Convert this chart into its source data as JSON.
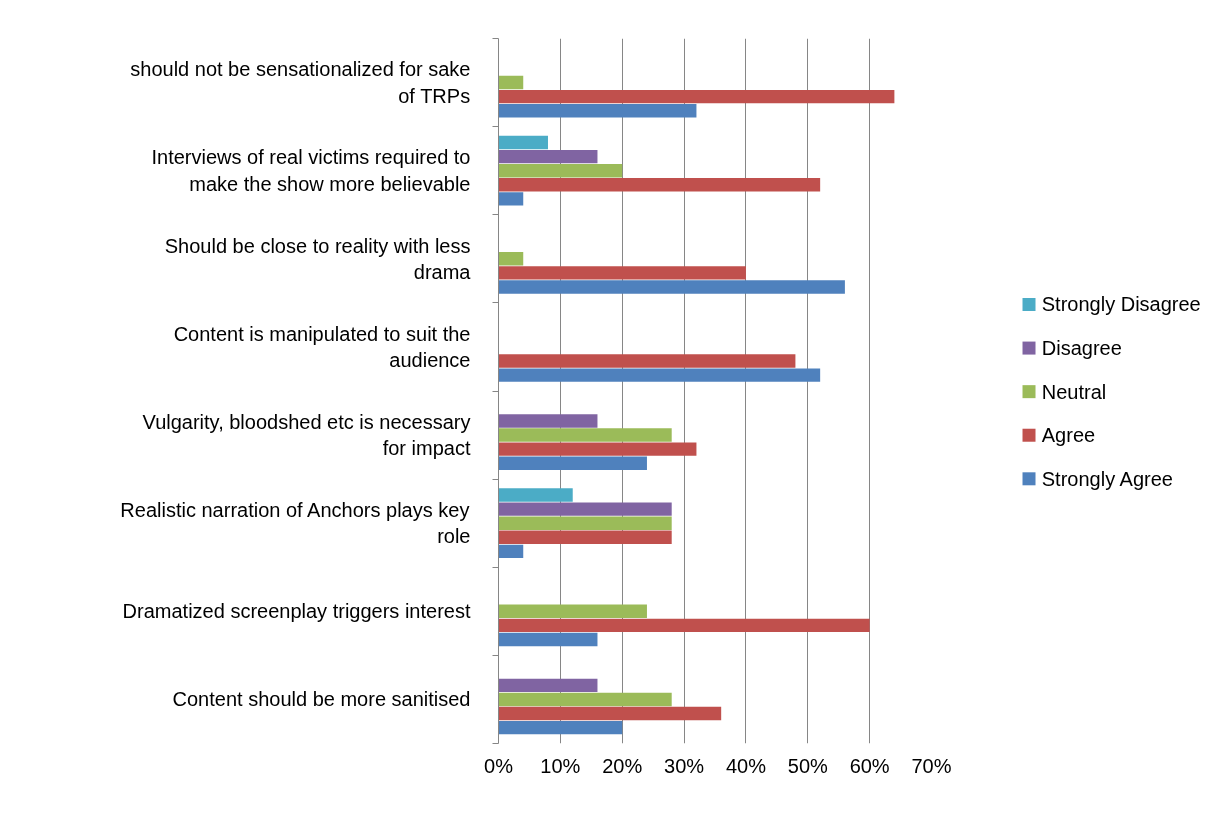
{
  "chart_data": {
    "type": "bar",
    "orientation": "horizontal",
    "categories": [
      "should not be sensationalized for sake of TRPs",
      "Interviews of real victims required to make the show more believable",
      "Should be close to reality with less drama",
      "Content is manipulated to suit the audience",
      "Vulgarity, bloodshed etc is necessary for impact",
      "Realistic narration of Anchors plays key role",
      "Dramatized screenplay triggers interest",
      "Content should be more sanitised"
    ],
    "series": [
      {
        "name": "Strongly Disagree",
        "color": "#4bacc6",
        "values": [
          null,
          8,
          null,
          null,
          null,
          12,
          null,
          null
        ]
      },
      {
        "name": "Disagree",
        "color": "#8064a2",
        "values": [
          null,
          16,
          null,
          null,
          16,
          28,
          null,
          16
        ]
      },
      {
        "name": "Neutral",
        "color": "#9bbb59",
        "values": [
          4,
          20,
          4,
          null,
          28,
          28,
          24,
          28
        ]
      },
      {
        "name": "Agree",
        "color": "#c0504d",
        "values": [
          64,
          52,
          40,
          48,
          32,
          28,
          60,
          36
        ]
      },
      {
        "name": "Strongly Agree",
        "color": "#4f81bd",
        "values": [
          32,
          4,
          56,
          52,
          24,
          4,
          16,
          20
        ]
      }
    ],
    "xlim": [
      0,
      70
    ],
    "xticks": [
      {
        "value": 0,
        "label": "0%"
      },
      {
        "value": 10,
        "label": "10%"
      },
      {
        "value": 20,
        "label": "20%"
      },
      {
        "value": 30,
        "label": "30%"
      },
      {
        "value": 40,
        "label": "40%"
      },
      {
        "value": 50,
        "label": "50%"
      },
      {
        "value": 60,
        "label": "60%"
      },
      {
        "value": 70,
        "label": "70%"
      }
    ],
    "grid": "x",
    "legend": "right"
  }
}
